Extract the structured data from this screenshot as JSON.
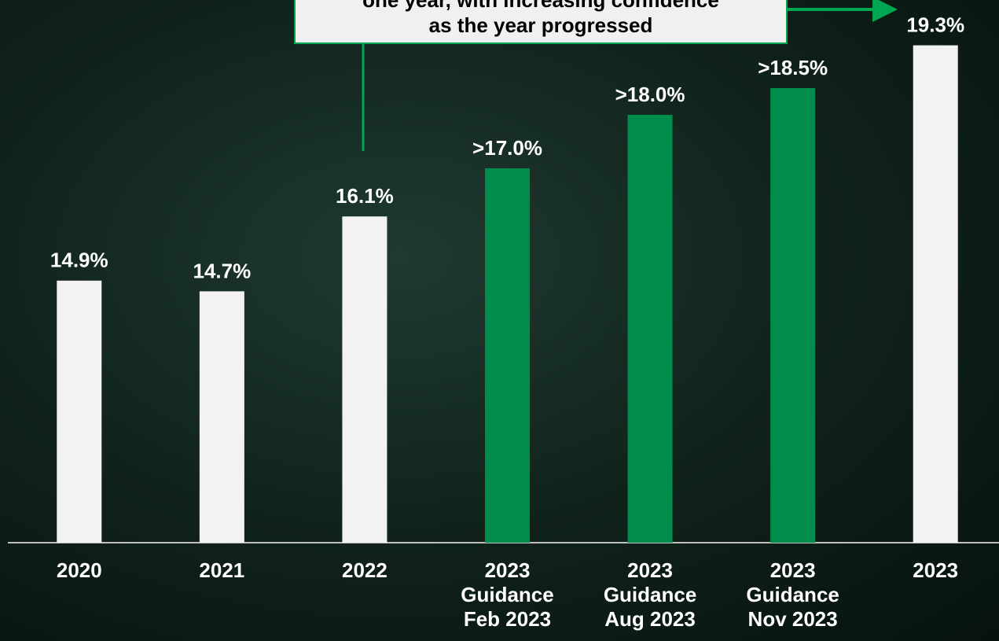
{
  "chart_data": {
    "type": "bar",
    "annotation": [
      "one year, with increasing confidence",
      "as the year progressed"
    ],
    "categories": [
      "2020",
      "2021",
      "2022",
      "2023\nGuidance\nFeb 2023",
      "2023\nGuidance\nAug 2023",
      "2023\nGuidance\nNov 2023",
      "2023"
    ],
    "values": [
      14.9,
      14.7,
      16.1,
      17.0,
      18.0,
      18.5,
      19.3
    ],
    "value_labels": [
      "14.9%",
      "14.7%",
      "16.1%",
      ">17.0%",
      ">18.0%",
      ">18.5%",
      "19.3%"
    ],
    "colors": [
      "#f2f2f2",
      "#f2f2f2",
      "#f2f2f2",
      "#008c4a",
      "#008c4a",
      "#008c4a",
      "#f2f2f2"
    ],
    "ylim": [
      10,
      20
    ]
  }
}
